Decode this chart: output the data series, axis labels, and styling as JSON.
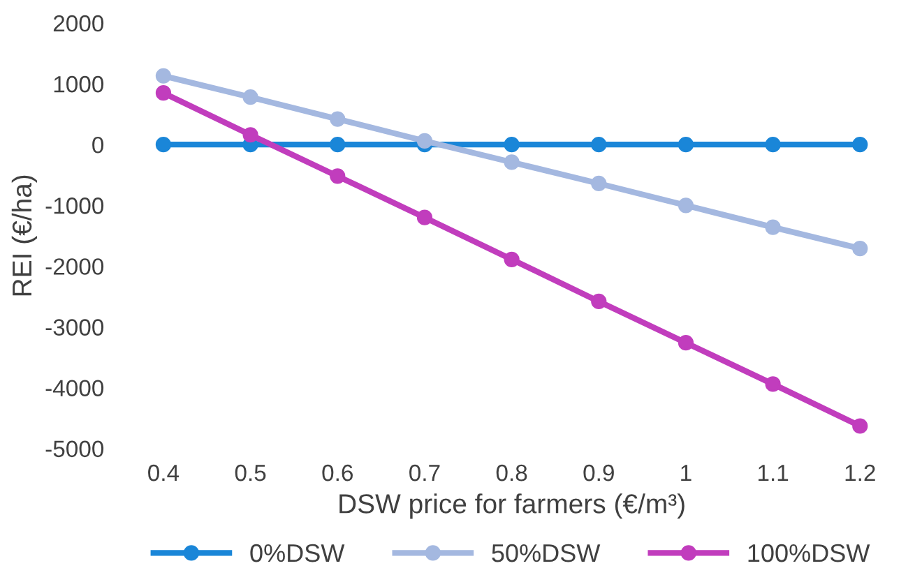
{
  "chart_data": {
    "type": "line",
    "xlabel": "DSW price for farmers (€/m³)",
    "ylabel": "REI (€/ha)",
    "categories": [
      "0.4",
      "0.5",
      "0.6",
      "0.7",
      "0.8",
      "0.9",
      "1",
      "1.1",
      "1.2"
    ],
    "series": [
      {
        "name": "0%DSW",
        "color": "#1a86d8",
        "values": [
          0,
          0,
          0,
          0,
          0,
          0,
          0,
          0,
          0
        ]
      },
      {
        "name": "50%DSW",
        "color": "#a4b8e0",
        "values": [
          1130,
          780,
          420,
          60,
          -290,
          -640,
          -1000,
          -1360,
          -1710
        ]
      },
      {
        "name": "100%DSW",
        "color": "#c13dbd",
        "values": [
          850,
          160,
          -520,
          -1200,
          -1890,
          -2580,
          -3260,
          -3940,
          -4630
        ]
      }
    ],
    "ylim": [
      -5000,
      2000
    ],
    "yticks": [
      -5000,
      -4000,
      -3000,
      -2000,
      -1000,
      0,
      1000,
      2000
    ],
    "grid": false,
    "legend": "bottom",
    "marker": "circle",
    "line_style": "solid"
  }
}
